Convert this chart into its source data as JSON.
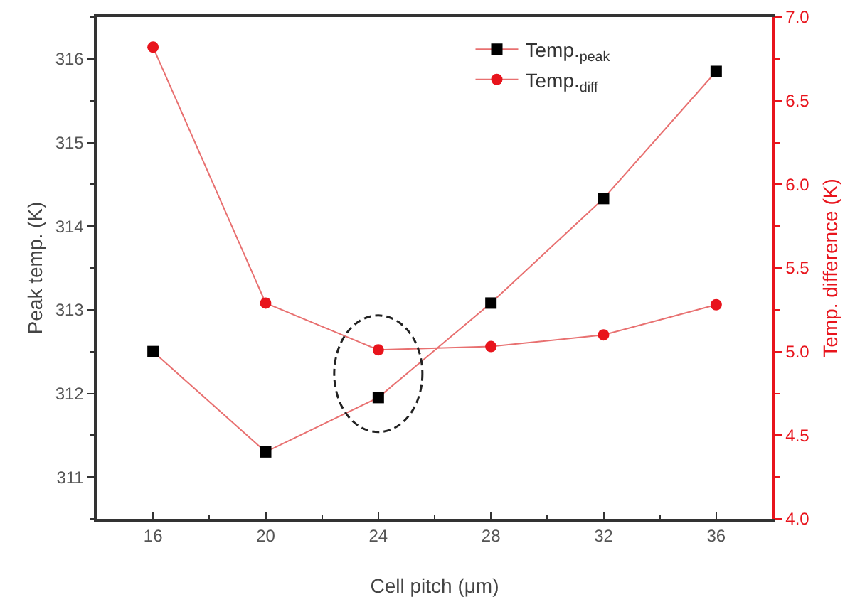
{
  "chart_data": {
    "type": "line",
    "xlabel": "Cell pitch (μm)",
    "ylabel": "Peak temp. (K)",
    "y2label": "Temp. difference (K)",
    "x": [
      16,
      20,
      24,
      28,
      32,
      36
    ],
    "series": [
      {
        "name": "Temp.$_{peak}$",
        "color": "#000000",
        "marker": "square",
        "values": [
          312.5,
          311.3,
          311.95,
          313.08,
          314.33,
          315.85
        ]
      },
      {
        "name": "Temp.$_{diff}$",
        "color": "#e8141c",
        "marker": "circle",
        "axis": "y2",
        "values": [
          6.82,
          5.29,
          5.01,
          5.03,
          5.1,
          5.28
        ]
      }
    ],
    "xlim": [
      14,
      38
    ],
    "xticks": [
      16,
      20,
      24,
      28,
      32,
      36
    ],
    "ylim": [
      310.5,
      316.5
    ],
    "yticks": [
      311,
      312,
      313,
      314,
      315,
      316
    ],
    "y2lim": [
      4,
      7
    ],
    "y2ticks": [
      {
        "value": 4,
        "label": "4.0"
      },
      {
        "value": 4.5,
        "label": "4.5"
      },
      {
        "value": 5,
        "label": "5.0"
      },
      {
        "value": 5.5,
        "label": "5.5"
      },
      {
        "value": 6,
        "label": "6.0"
      },
      {
        "value": 6.5,
        "label": "6.5"
      },
      {
        "value": 7,
        "label": "7.0"
      }
    ],
    "legend": "top right",
    "grid": false,
    "line_style": "solid"
  }
}
